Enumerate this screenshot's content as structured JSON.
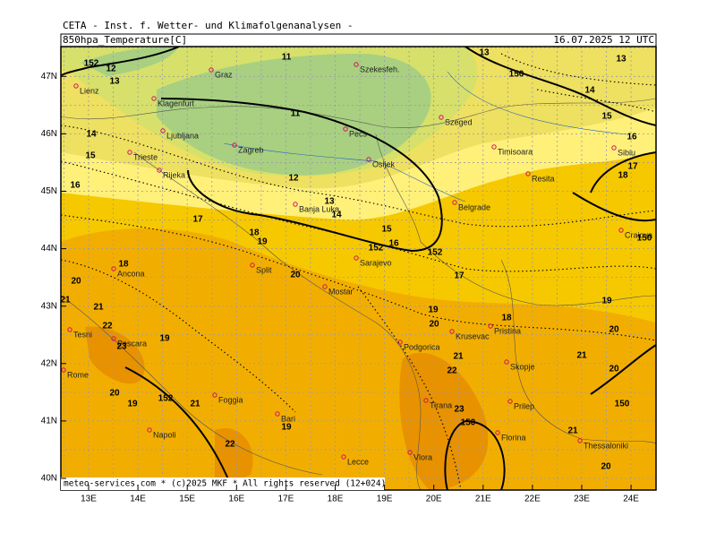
{
  "header": {
    "institute": "CETA - Inst. f. Wetter- und Klimafolgenanalysen -",
    "parameter": "850hpa_Temperature[C]",
    "valid": "16.07.2025 12 UTC"
  },
  "footer": "meteo-services.com * (c)2025 MKF * All rights reserved (12+024)",
  "lat_labels": [
    "47N",
    "46N",
    "45N",
    "44N",
    "43N",
    "42N",
    "41N",
    "40N"
  ],
  "lon_labels": [
    "13E",
    "14E",
    "15E",
    "16E",
    "17E",
    "18E",
    "19E",
    "20E",
    "21E",
    "22E",
    "23E",
    "24E"
  ],
  "cities": [
    "Graz",
    "Szekesfeh.",
    "Lienz",
    "Klagenfurt",
    "Ljubljana",
    "Zagreb",
    "Pecs",
    "Szeged",
    "Trieste",
    "Rijeka",
    "Osijek",
    "Timisoara",
    "Sibiu",
    "Resita",
    "Banja Luka",
    "Belgrade",
    "Craiova",
    "Sarajevo",
    "Ancona",
    "Split",
    "Mostar",
    "Pristina",
    "Krusevac",
    "Tesni",
    "Pescara",
    "Podgorica",
    "Skopje",
    "Rome",
    "Tirana",
    "Prilep",
    "Foggia",
    "Bari",
    "Napoli",
    "Florina",
    "Thessaloniki",
    "Lecce",
    "Vlora"
  ],
  "contour_labels": [
    152,
    12,
    13,
    11,
    13,
    13,
    150,
    14,
    11,
    15,
    16,
    17,
    18,
    14,
    15,
    16,
    12,
    13,
    14,
    15,
    16,
    152,
    152,
    17,
    17,
    18,
    19,
    18,
    20,
    20,
    21,
    21,
    22,
    19,
    20,
    18,
    19,
    20,
    19,
    23,
    21,
    21,
    22,
    20,
    20,
    19,
    152,
    21,
    23,
    150,
    150,
    19,
    21,
    22,
    20,
    150
  ]
}
